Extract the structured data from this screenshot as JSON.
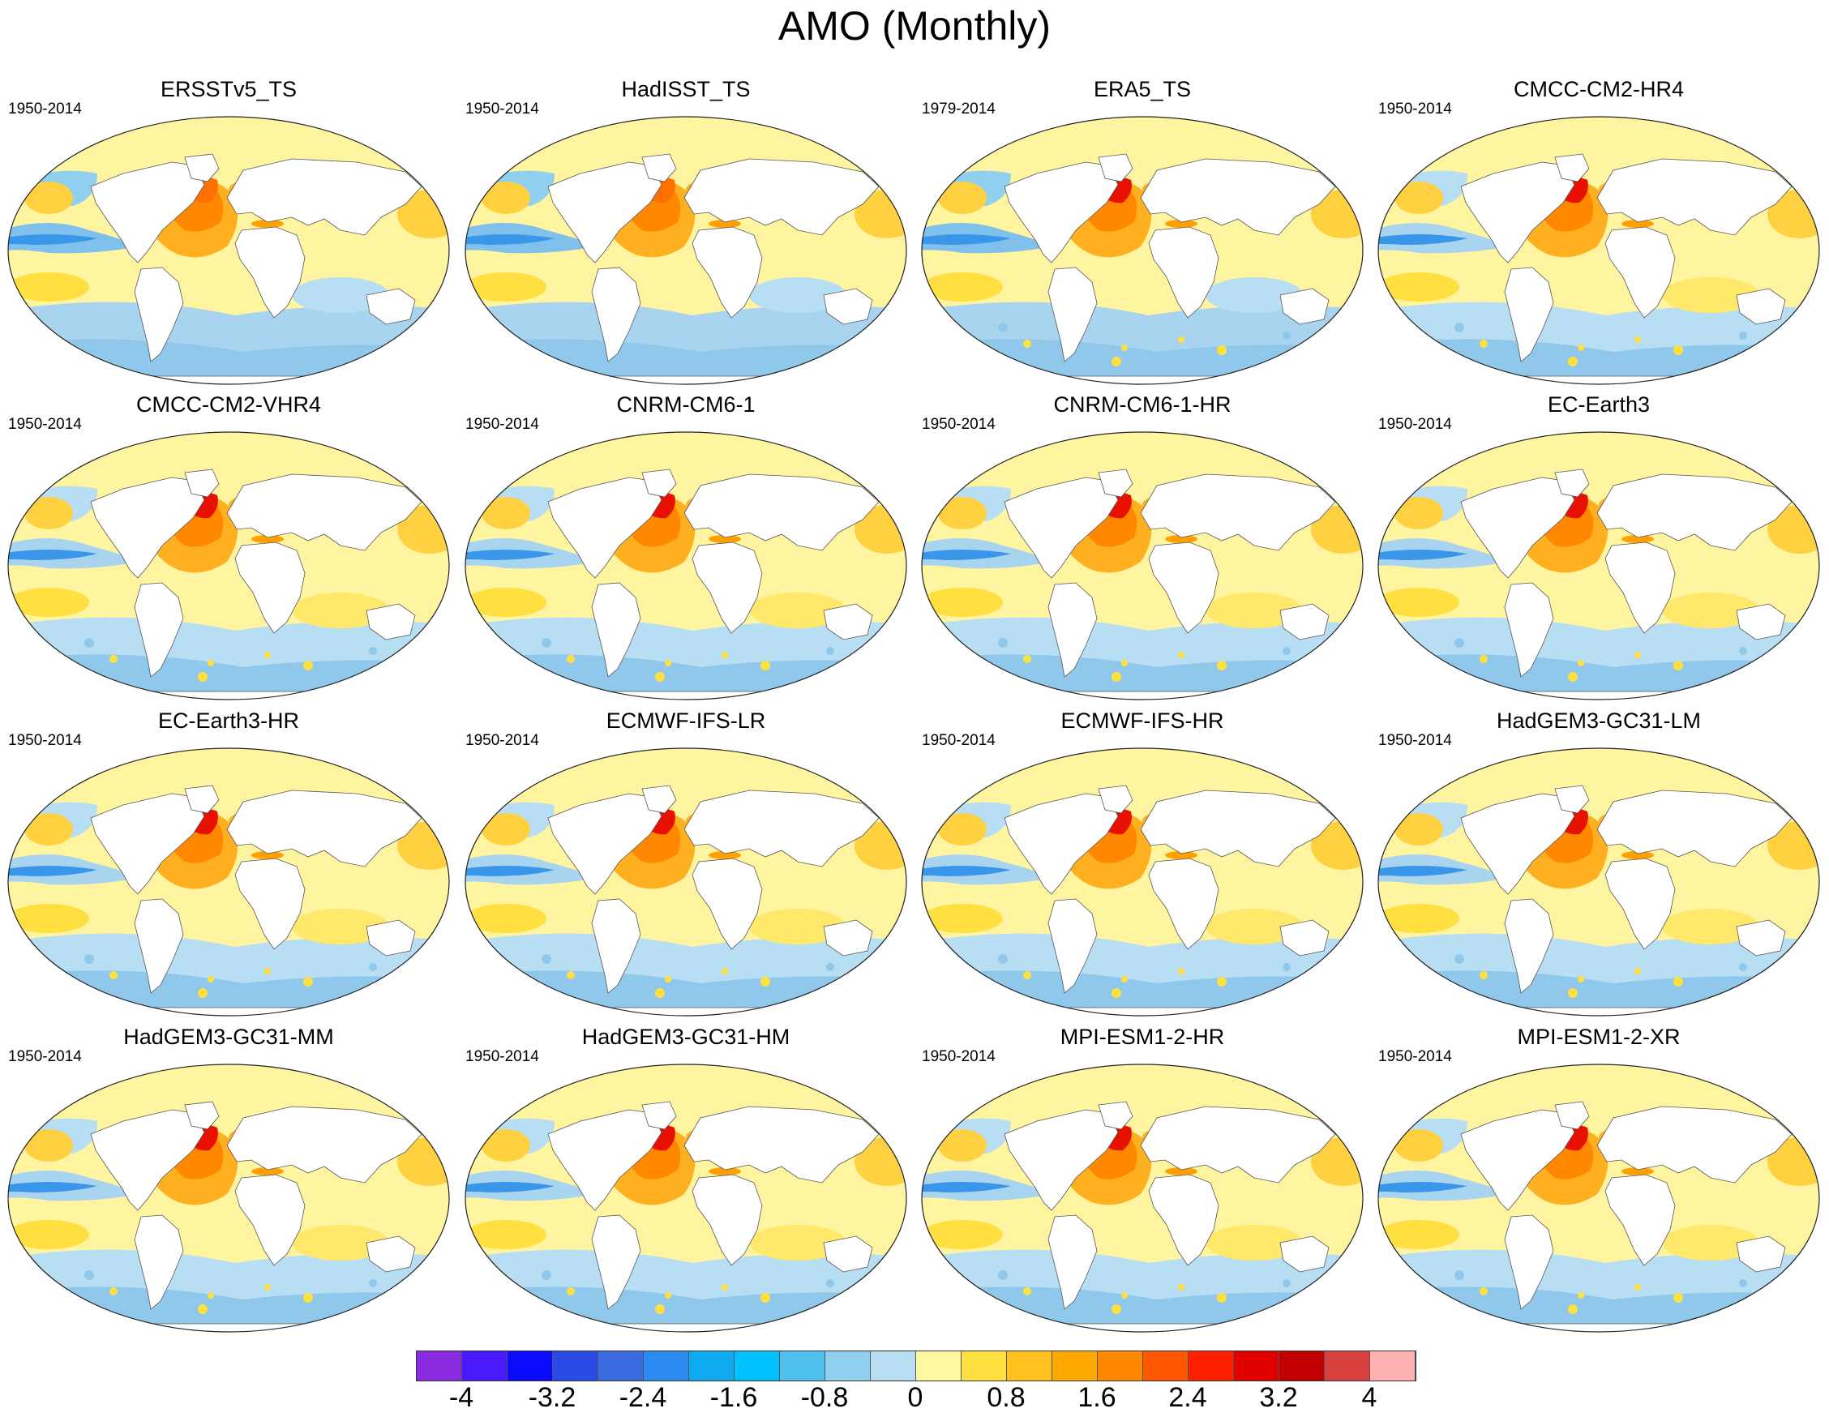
{
  "title": "AMO (Monthly)",
  "panels": [
    {
      "name": "ERSSTv5_TS",
      "period": "1950-2014",
      "style": "obs_smooth"
    },
    {
      "name": "HadISST_TS",
      "period": "1950-2014",
      "style": "obs_smooth"
    },
    {
      "name": "ERA5_TS",
      "period": "1979-2014",
      "style": "obs_noisy"
    },
    {
      "name": "CMCC-CM2-HR4",
      "period": "1950-2014",
      "style": "model"
    },
    {
      "name": "CMCC-CM2-VHR4",
      "period": "1950-2014",
      "style": "model"
    },
    {
      "name": "CNRM-CM6-1",
      "period": "1950-2014",
      "style": "model"
    },
    {
      "name": "CNRM-CM6-1-HR",
      "period": "1950-2014",
      "style": "model"
    },
    {
      "name": "EC-Earth3",
      "period": "1950-2014",
      "style": "model"
    },
    {
      "name": "EC-Earth3-HR",
      "period": "1950-2014",
      "style": "model"
    },
    {
      "name": "ECMWF-IFS-LR",
      "period": "1950-2014",
      "style": "model"
    },
    {
      "name": "ECMWF-IFS-HR",
      "period": "1950-2014",
      "style": "model"
    },
    {
      "name": "HadGEM3-GC31-LM",
      "period": "1950-2014",
      "style": "model"
    },
    {
      "name": "HadGEM3-GC31-MM",
      "period": "1950-2014",
      "style": "model"
    },
    {
      "name": "HadGEM3-GC31-HM",
      "period": "1950-2014",
      "style": "model"
    },
    {
      "name": "MPI-ESM1-2-HR",
      "period": "1950-2014",
      "style": "model"
    },
    {
      "name": "MPI-ESM1-2-XR",
      "period": "1950-2014",
      "style": "model"
    }
  ],
  "colorbar": {
    "colors": [
      "#8a2be2",
      "#4a1aff",
      "#0a0aff",
      "#2a4ae8",
      "#3a6ae0",
      "#2a8af0",
      "#10aaf0",
      "#00c0ff",
      "#50c0ee",
      "#90cfee",
      "#b8def4",
      "#fff8a0",
      "#ffe040",
      "#ffc020",
      "#ffa800",
      "#ff8800",
      "#ff5800",
      "#ff2000",
      "#e00000",
      "#c00000",
      "#d84040",
      "#ffb0b0"
    ],
    "labels": [
      "-4",
      "-3.2",
      "-2.4",
      "-1.6",
      "-0.8",
      "0",
      "0.8",
      "1.6",
      "2.4",
      "3.2",
      "4"
    ]
  }
}
